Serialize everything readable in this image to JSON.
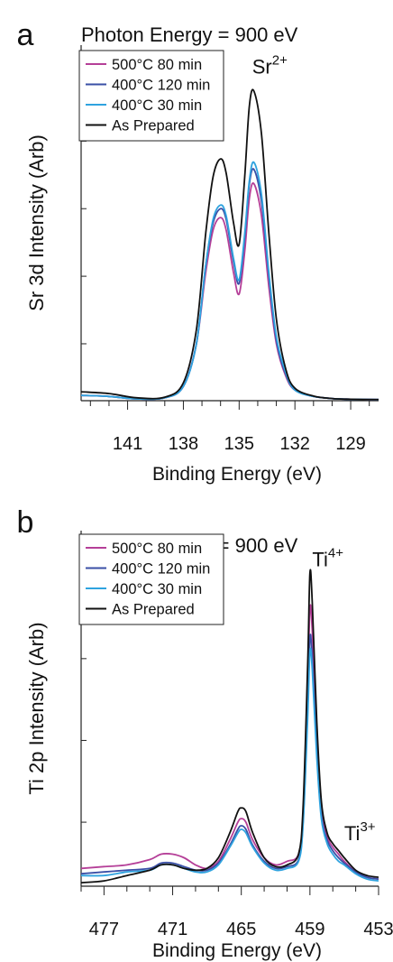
{
  "colors": {
    "series": [
      "#b53f98",
      "#3a4fa6",
      "#2fa3df",
      "#111111"
    ],
    "axis": "#222222"
  },
  "chart_data": [
    {
      "panel_label": "a",
      "type": "line",
      "title": "Photon Energy = 900 eV",
      "xlabel": "Binding Energy (eV)",
      "ylabel": "Sr 3d Intensity (Arb)",
      "xlim": [
        143.5,
        127.5
      ],
      "ylim": [
        0,
        100
      ],
      "x_reversed": true,
      "xticks": [
        141,
        138,
        135,
        132,
        129
      ],
      "xtick_labels": [
        "141",
        "138",
        "135",
        "132",
        "129"
      ],
      "yticks": [
        16,
        35,
        54,
        73,
        92
      ],
      "annotations": [
        {
          "text": "Sr",
          "sup": "2+",
          "x": 134.3,
          "y": 92
        }
      ],
      "legend": {
        "placement": "top-left"
      },
      "series": [
        {
          "name": "500°C 80 min",
          "color": "#b53f98",
          "x": [
            143.5,
            142,
            140.5,
            139,
            138,
            137.3,
            136.8,
            136.4,
            136.0,
            135.7,
            135.3,
            135.0,
            134.7,
            134.45,
            134.2,
            133.8,
            133.4,
            133,
            132.5,
            132,
            131,
            130,
            129,
            127.5
          ],
          "y": [
            1.5,
            1.2,
            0.5,
            0.8,
            4,
            16,
            36,
            48,
            51.5,
            48,
            36,
            30,
            42,
            57,
            61,
            52,
            32,
            16,
            7,
            3,
            1.2,
            0.6,
            0.4,
            0.3
          ]
        },
        {
          "name": "400°C 120 min",
          "color": "#3a4fa6",
          "x": [
            143.5,
            142,
            140.5,
            139,
            138,
            137.3,
            136.8,
            136.4,
            136.0,
            135.7,
            135.3,
            135.0,
            134.7,
            134.45,
            134.2,
            133.8,
            133.4,
            133,
            132.5,
            132,
            131,
            130,
            129,
            127.5
          ],
          "y": [
            1.5,
            1.2,
            0.5,
            0.8,
            4,
            16,
            38,
            50,
            54,
            51,
            39,
            33,
            46,
            61,
            65,
            56,
            35,
            17,
            7.5,
            3,
            1.2,
            0.6,
            0.4,
            0.3
          ]
        },
        {
          "name": "400°C 30 min",
          "color": "#2fa3df",
          "x": [
            143.5,
            142,
            140.5,
            139,
            138,
            137.3,
            136.8,
            136.4,
            136.0,
            135.7,
            135.3,
            135.0,
            134.7,
            134.45,
            134.2,
            133.8,
            133.4,
            133,
            132.5,
            132,
            131,
            130,
            129,
            127.5
          ],
          "y": [
            1.5,
            1.2,
            0.5,
            0.8,
            4,
            16,
            38,
            51,
            55,
            52,
            40,
            34,
            47,
            62,
            67,
            58,
            36,
            18,
            8,
            3,
            1.2,
            0.6,
            0.4,
            0.3
          ]
        },
        {
          "name": "As Prepared",
          "color": "#111111",
          "x": [
            143.5,
            142,
            140.5,
            139,
            138,
            137.3,
            136.8,
            136.4,
            136.0,
            135.7,
            135.3,
            135.0,
            134.7,
            134.45,
            134.2,
            133.8,
            133.4,
            133,
            132.5,
            132,
            131,
            130,
            129,
            127.5
          ],
          "y": [
            2.5,
            2,
            0.8,
            1,
            5,
            20,
            47,
            63,
            68,
            64,
            50,
            44,
            63,
            83,
            87,
            75,
            47,
            23,
            9,
            3.5,
            1.3,
            0.6,
            0.4,
            0.3
          ]
        }
      ]
    },
    {
      "panel_label": "b",
      "type": "line",
      "title": "Photon Energy = 900 eV",
      "xlabel": "Binding Energy (eV)",
      "ylabel": "Ti 2p Intensity (Arb)",
      "xlim": [
        479,
        453
      ],
      "ylim": [
        0,
        100
      ],
      "x_reversed": true,
      "xticks": [
        477,
        471,
        465,
        459,
        453
      ],
      "xtick_labels": [
        "477",
        "471",
        "465",
        "459",
        "453"
      ],
      "yticks": [
        18,
        41,
        64,
        87
      ],
      "annotations": [
        {
          "text": "Ti",
          "sup": "4+",
          "x": 458.8,
          "y": 90
        },
        {
          "text": "Ti",
          "sup": "3+",
          "x": 456.0,
          "y": 13
        }
      ],
      "legend": {
        "placement": "top-left"
      },
      "series": [
        {
          "name": "500°C 80 min",
          "color": "#b53f98",
          "x": [
            479,
            477,
            475,
            473,
            472,
            471,
            470,
            469,
            468,
            467,
            466,
            465.3,
            465,
            464.6,
            464,
            463,
            462,
            461,
            460,
            459.6,
            459.2,
            459.0,
            458.8,
            458.4,
            458,
            457.5,
            457,
            456.5,
            456,
            455,
            454,
            453
          ],
          "y": [
            5,
            5.5,
            6,
            7.5,
            9,
            9,
            8,
            6,
            5,
            7,
            13,
            18,
            19,
            18,
            13,
            8,
            6,
            7,
            9,
            20,
            55,
            78,
            72,
            42,
            22,
            14,
            11,
            9,
            7,
            4,
            2.5,
            2
          ]
        },
        {
          "name": "400°C 120 min",
          "color": "#3a4fa6",
          "x": [
            479,
            477,
            475,
            473,
            472,
            471,
            470,
            469,
            468,
            467,
            466,
            465.3,
            465,
            464.6,
            464,
            463,
            462,
            461,
            460,
            459.6,
            459.2,
            459.0,
            458.8,
            458.4,
            458,
            457.5,
            457,
            456.5,
            456,
            455,
            454,
            453
          ],
          "y": [
            3.5,
            4,
            4.5,
            5,
            6.5,
            6.5,
            5.5,
            4.5,
            4.5,
            6.5,
            11.5,
            16,
            17,
            16,
            11.5,
            7,
            5,
            5.5,
            7.5,
            18,
            50,
            70,
            64,
            38,
            20,
            13,
            10,
            8,
            6.5,
            4,
            2.5,
            2
          ]
        },
        {
          "name": "400°C 30 min",
          "color": "#2fa3df",
          "x": [
            479,
            477,
            475,
            473,
            472,
            471,
            470,
            469,
            468,
            467,
            466,
            465.3,
            465,
            464.6,
            464,
            463,
            462,
            461,
            460,
            459.6,
            459.2,
            459.0,
            458.8,
            458.4,
            458,
            457.5,
            457,
            456.5,
            456,
            455,
            454,
            453
          ],
          "y": [
            3,
            3,
            4,
            4.5,
            6,
            6,
            5,
            4,
            4,
            6,
            11,
            15,
            16,
            15,
            11,
            6.5,
            4.5,
            5,
            7,
            17,
            47,
            66,
            61,
            36,
            19,
            12,
            9,
            7,
            6,
            3.5,
            2,
            1.5
          ]
        },
        {
          "name": "As Prepared",
          "color": "#111111",
          "x": [
            479,
            477,
            475,
            473,
            472,
            471,
            470,
            469,
            468,
            467,
            466,
            465.3,
            465,
            464.6,
            464,
            463,
            462,
            461,
            460,
            459.6,
            459.2,
            459.0,
            458.8,
            458.4,
            458,
            457.5,
            457,
            456.5,
            456,
            455,
            454,
            453
          ],
          "y": [
            1,
            1.5,
            3,
            4.5,
            6,
            6,
            5,
            4.5,
            5,
            8,
            15,
            21,
            22,
            21,
            15,
            8,
            5.5,
            6,
            9,
            22,
            62,
            88,
            80,
            46,
            24,
            15,
            12,
            10,
            8,
            4.5,
            3,
            2.5
          ]
        }
      ]
    }
  ]
}
